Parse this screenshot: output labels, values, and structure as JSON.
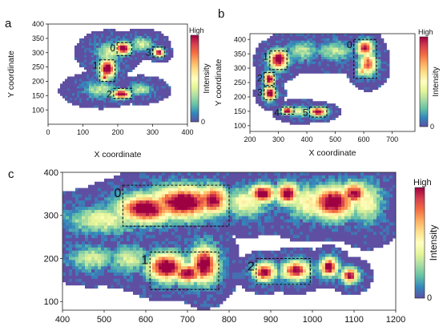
{
  "figure": {
    "panel_letters": [
      "a",
      "b",
      "c"
    ],
    "colorbar": {
      "high_label": "High",
      "low_label": "0",
      "title": "Intensity"
    }
  },
  "chart_data": [
    {
      "panel": "a",
      "type": "heatmap",
      "colormap": "Spectral_r",
      "background_color": "#5e4fa2",
      "xlabel": "X coordinate",
      "ylabel": "Y coordinate",
      "xlim": [
        0,
        400
      ],
      "ylim": [
        50,
        400
      ],
      "xticks": [
        0,
        100,
        200,
        300,
        400
      ],
      "yticks": [
        100,
        150,
        200,
        250,
        300,
        350,
        400
      ],
      "regions": [
        {
          "label": "0",
          "x0": 198,
          "x1": 240,
          "y0": 290,
          "y1": 335
        },
        {
          "label": "1",
          "x0": 148,
          "x1": 192,
          "y0": 200,
          "y1": 275
        },
        {
          "label": "2",
          "x0": 188,
          "x1": 240,
          "y0": 140,
          "y1": 175
        },
        {
          "label": "3",
          "x0": 300,
          "x1": 335,
          "y0": 285,
          "y1": 320
        }
      ],
      "hotspots": [
        {
          "x": 215,
          "y": 315,
          "sx": 15,
          "sy": 14,
          "v": 1.0
        },
        {
          "x": 170,
          "y": 245,
          "sx": 15,
          "sy": 22,
          "v": 1.0
        },
        {
          "x": 162,
          "y": 215,
          "sx": 10,
          "sy": 10,
          "v": 0.8
        },
        {
          "x": 210,
          "y": 155,
          "sx": 18,
          "sy": 10,
          "v": 1.0
        },
        {
          "x": 318,
          "y": 300,
          "sx": 10,
          "sy": 10,
          "v": 0.9
        },
        {
          "x": 175,
          "y": 300,
          "sx": 25,
          "sy": 22,
          "v": 0.35
        },
        {
          "x": 150,
          "y": 170,
          "sx": 30,
          "sy": 18,
          "v": 0.3
        },
        {
          "x": 265,
          "y": 170,
          "sx": 22,
          "sy": 14,
          "v": 0.3
        },
        {
          "x": 270,
          "y": 330,
          "sx": 20,
          "sy": 15,
          "v": 0.35
        }
      ]
    },
    {
      "panel": "b",
      "type": "heatmap",
      "colormap": "Spectral_r",
      "background_color": "#5e4fa2",
      "xlabel": "X coordinate",
      "ylabel": "Y coordinate",
      "xlim": [
        200,
        780
      ],
      "ylim": [
        80,
        420
      ],
      "xticks": [
        200,
        300,
        400,
        500,
        600,
        700
      ],
      "yticks": [
        100,
        150,
        200,
        250,
        300,
        350,
        400
      ],
      "regions": [
        {
          "label": "0",
          "x0": 565,
          "x1": 645,
          "y0": 265,
          "y1": 400
        },
        {
          "label": "1",
          "x0": 270,
          "x1": 330,
          "y0": 295,
          "y1": 360
        },
        {
          "label": "2",
          "x0": 250,
          "x1": 285,
          "y0": 240,
          "y1": 285
        },
        {
          "label": "3",
          "x0": 250,
          "x1": 290,
          "y0": 190,
          "y1": 235
        },
        {
          "label": "4",
          "x0": 310,
          "x1": 355,
          "y0": 140,
          "y1": 165
        },
        {
          "label": "5",
          "x0": 410,
          "x1": 470,
          "y0": 130,
          "y1": 165
        }
      ],
      "hotspots": [
        {
          "x": 300,
          "y": 330,
          "sx": 22,
          "sy": 22,
          "v": 1.0
        },
        {
          "x": 268,
          "y": 262,
          "sx": 12,
          "sy": 16,
          "v": 1.0
        },
        {
          "x": 270,
          "y": 212,
          "sx": 14,
          "sy": 16,
          "v": 1.0
        },
        {
          "x": 332,
          "y": 152,
          "sx": 14,
          "sy": 8,
          "v": 1.0
        },
        {
          "x": 440,
          "y": 148,
          "sx": 20,
          "sy": 10,
          "v": 1.0
        },
        {
          "x": 605,
          "y": 370,
          "sx": 18,
          "sy": 18,
          "v": 0.9
        },
        {
          "x": 615,
          "y": 315,
          "sx": 20,
          "sy": 26,
          "v": 0.75
        },
        {
          "x": 595,
          "y": 290,
          "sx": 12,
          "sy": 12,
          "v": 0.6
        },
        {
          "x": 385,
          "y": 360,
          "sx": 35,
          "sy": 22,
          "v": 0.3
        },
        {
          "x": 500,
          "y": 360,
          "sx": 40,
          "sy": 22,
          "v": 0.3
        },
        {
          "x": 375,
          "y": 150,
          "sx": 25,
          "sy": 12,
          "v": 0.35
        }
      ]
    },
    {
      "panel": "c",
      "type": "heatmap",
      "colormap": "Spectral_r",
      "background_color": "#5e4fa2",
      "xlim": [
        400,
        1200
      ],
      "ylim": [
        80,
        400
      ],
      "xticks": [
        400,
        500,
        600,
        700,
        800,
        900,
        1000,
        1100,
        1200
      ],
      "yticks": [
        100,
        200,
        300,
        400
      ],
      "regions": [
        {
          "label": "0",
          "x0": 545,
          "x1": 800,
          "y0": 275,
          "y1": 370
        },
        {
          "label": "1",
          "x0": 610,
          "x1": 775,
          "y0": 128,
          "y1": 215
        },
        {
          "label": "2",
          "x0": 865,
          "x1": 995,
          "y0": 140,
          "y1": 200
        }
      ],
      "hotspots": [
        {
          "x": 600,
          "y": 315,
          "sx": 45,
          "sy": 22,
          "v": 1.0
        },
        {
          "x": 690,
          "y": 330,
          "sx": 55,
          "sy": 25,
          "v": 1.0
        },
        {
          "x": 760,
          "y": 335,
          "sx": 25,
          "sy": 22,
          "v": 0.95
        },
        {
          "x": 880,
          "y": 350,
          "sx": 22,
          "sy": 14,
          "v": 1.0
        },
        {
          "x": 940,
          "y": 350,
          "sx": 18,
          "sy": 16,
          "v": 1.0
        },
        {
          "x": 1050,
          "y": 330,
          "sx": 35,
          "sy": 25,
          "v": 1.0
        },
        {
          "x": 1100,
          "y": 350,
          "sx": 22,
          "sy": 18,
          "v": 0.9
        },
        {
          "x": 650,
          "y": 180,
          "sx": 30,
          "sy": 22,
          "v": 1.0
        },
        {
          "x": 740,
          "y": 185,
          "sx": 22,
          "sy": 28,
          "v": 1.0
        },
        {
          "x": 700,
          "y": 165,
          "sx": 25,
          "sy": 15,
          "v": 0.95
        },
        {
          "x": 885,
          "y": 168,
          "sx": 18,
          "sy": 14,
          "v": 0.95
        },
        {
          "x": 960,
          "y": 172,
          "sx": 22,
          "sy": 15,
          "v": 0.9
        },
        {
          "x": 1040,
          "y": 180,
          "sx": 14,
          "sy": 14,
          "v": 1.0
        },
        {
          "x": 1090,
          "y": 160,
          "sx": 14,
          "sy": 12,
          "v": 0.9
        },
        {
          "x": 500,
          "y": 290,
          "sx": 60,
          "sy": 20,
          "v": 0.4
        },
        {
          "x": 470,
          "y": 200,
          "sx": 35,
          "sy": 18,
          "v": 0.35
        },
        {
          "x": 840,
          "y": 330,
          "sx": 35,
          "sy": 22,
          "v": 0.45
        },
        {
          "x": 1000,
          "y": 330,
          "sx": 40,
          "sy": 25,
          "v": 0.5
        },
        {
          "x": 560,
          "y": 200,
          "sx": 30,
          "sy": 20,
          "v": 0.35
        },
        {
          "x": 1130,
          "y": 330,
          "sx": 25,
          "sy": 30,
          "v": 0.45
        }
      ]
    }
  ]
}
